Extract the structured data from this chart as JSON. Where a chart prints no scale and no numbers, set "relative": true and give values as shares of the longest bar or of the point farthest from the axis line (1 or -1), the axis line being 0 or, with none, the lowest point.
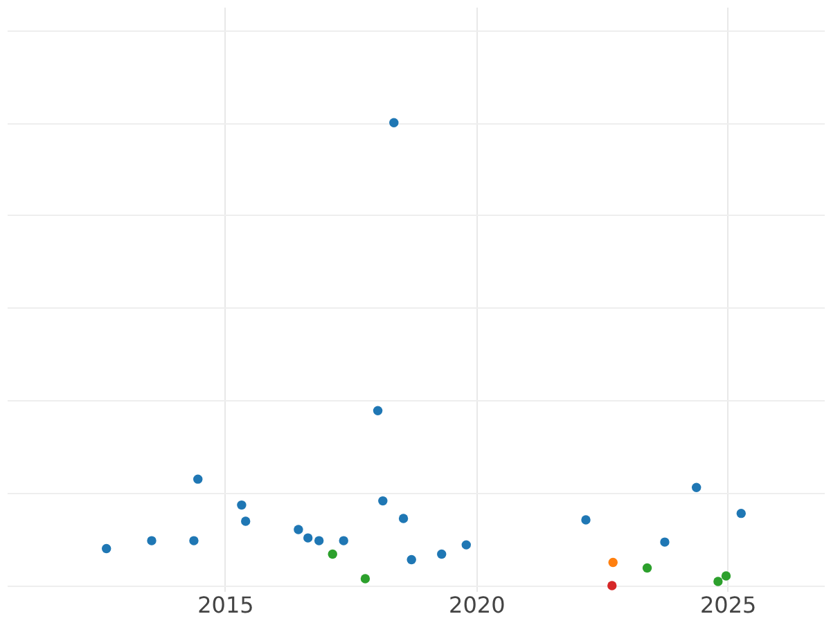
{
  "chart_data": {
    "type": "scatter",
    "relative": true,
    "xlim": [
      2010.66,
      2026.92
    ],
    "xticks": [
      2015,
      2020,
      2025
    ],
    "grid": true,
    "tick_labels": "x",
    "marker": "circle",
    "series": [
      {
        "color": "#1f77b4",
        "x": [
          2012.64,
          2013.54,
          2014.38,
          2014.46,
          2015.33,
          2015.41,
          2016.46,
          2016.65,
          2016.87,
          2017.36,
          2018.04,
          2018.14,
          2018.36,
          2018.55,
          2018.71,
          2019.31,
          2019.8,
          2022.18,
          2023.75,
          2024.38,
          2025.27
        ],
        "values": [
          0.08,
          0.097,
          0.097,
          0.23,
          0.174,
          0.139,
          0.121,
          0.103,
          0.097,
          0.097,
          0.378,
          0.183,
          1,
          0.145,
          0.056,
          0.068,
          0.088,
          0.142,
          0.094,
          0.212,
          0.156
        ]
      },
      {
        "color": "#2ca02c",
        "x": [
          2017.14,
          2017.79,
          2023.4,
          2024.81,
          2024.97
        ],
        "values": [
          0.068,
          0.015,
          0.038,
          0.009,
          0.021
        ]
      },
      {
        "color": "#ff7f0e",
        "x": [
          2022.72
        ],
        "values": [
          0.05
        ]
      },
      {
        "color": "#d62728",
        "x": [
          2022.7
        ],
        "values": [
          0
        ]
      }
    ]
  }
}
